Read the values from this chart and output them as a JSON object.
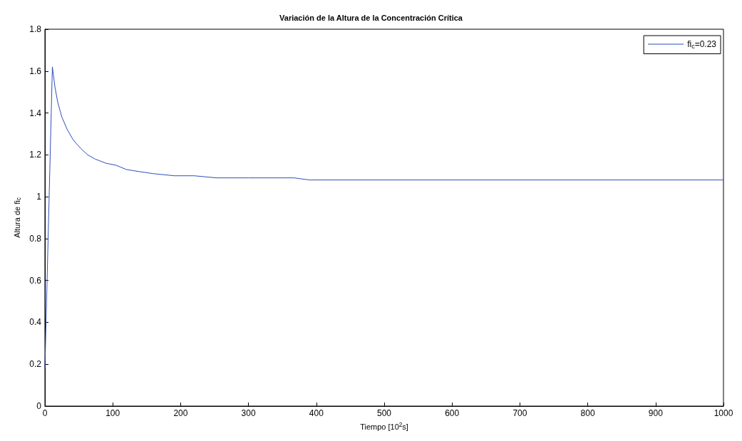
{
  "chart_data": {
    "type": "line",
    "title": "Variación de la Altura de la Concentración Crítica",
    "xlabel": "Tiempo [10$^{2}$s]",
    "ylabel": "Altura de fi$_{c}$",
    "xlim": [
      0,
      1000
    ],
    "xticks": [
      0,
      100,
      200,
      300,
      400,
      500,
      600,
      700,
      800,
      900,
      1000
    ],
    "ylim": [
      0,
      1.8
    ],
    "yticks": [
      0,
      0.2,
      0.4,
      0.6,
      0.8,
      1,
      1.2,
      1.4,
      1.6,
      1.8
    ],
    "grid": false,
    "legend": "top right",
    "marker": "none",
    "line_style": "solid",
    "series": [
      {
        "name": "fi$_{c}$=0.23",
        "color": "#2e4fb8",
        "x": [
          0,
          11,
          15,
          19,
          25,
          33,
          42,
          53,
          63,
          74,
          90,
          105,
          120,
          139,
          160,
          191,
          220,
          253,
          300,
          367,
          390,
          1000
        ],
        "values": [
          0.18,
          1.62,
          1.52,
          1.45,
          1.38,
          1.32,
          1.27,
          1.23,
          1.2,
          1.18,
          1.16,
          1.15,
          1.13,
          1.12,
          1.11,
          1.1,
          1.1,
          1.09,
          1.09,
          1.09,
          1.08,
          1.08
        ]
      }
    ]
  }
}
